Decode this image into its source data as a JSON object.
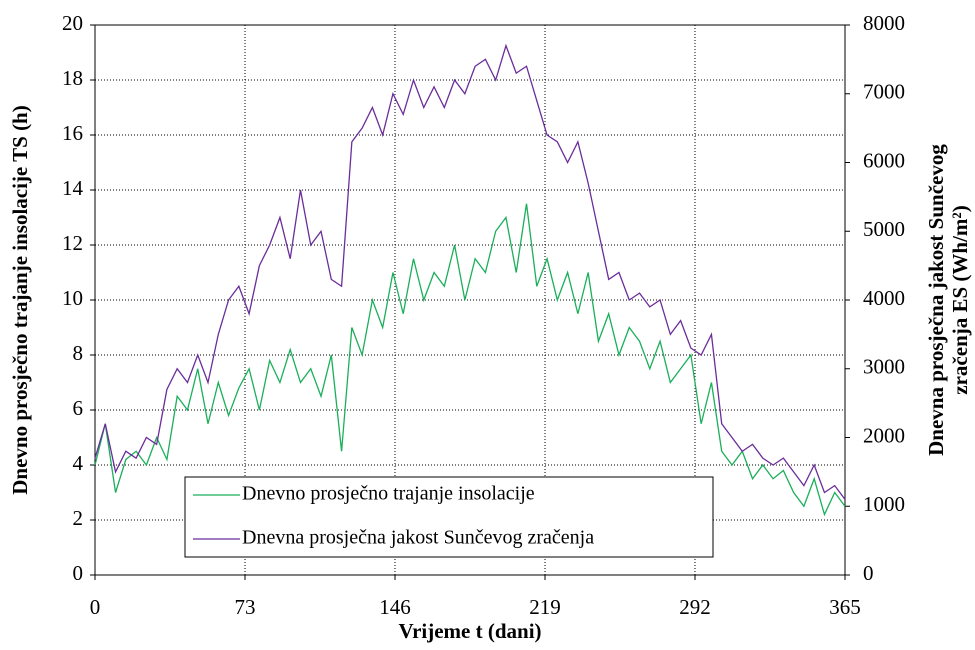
{
  "chart_data": {
    "type": "line",
    "x_label": "Vrijeme t (dani)",
    "y_label": "Dnevno prosječno trajanje insolacije TS (h)",
    "y2_label": [
      "Dnevna prosječna jakost Sunčevog",
      "zračenja ES (Wh/m²)"
    ],
    "x": [
      0,
      5,
      10,
      15,
      20,
      25,
      30,
      35,
      40,
      45,
      50,
      55,
      60,
      65,
      70,
      75,
      80,
      85,
      90,
      95,
      100,
      105,
      110,
      115,
      120,
      125,
      130,
      135,
      140,
      145,
      150,
      155,
      160,
      165,
      170,
      175,
      180,
      185,
      190,
      195,
      200,
      205,
      210,
      215,
      220,
      225,
      230,
      235,
      240,
      245,
      250,
      255,
      260,
      265,
      270,
      275,
      280,
      285,
      290,
      295,
      300,
      305,
      310,
      315,
      320,
      325,
      330,
      335,
      340,
      345,
      350,
      355,
      360,
      365
    ],
    "series": [
      {
        "name": "Dnevno prosječno trajanje insolacije",
        "color": "#1aaf5a",
        "values": [
          4.0,
          5.5,
          3.0,
          4.2,
          4.5,
          4.0,
          5.0,
          4.2,
          6.5,
          6.0,
          7.5,
          5.5,
          7.0,
          5.8,
          6.8,
          7.5,
          6.0,
          7.8,
          7.0,
          8.2,
          7.0,
          7.5,
          6.5,
          8.0,
          4.5,
          9.0,
          8.0,
          10.0,
          9.0,
          11.0,
          9.5,
          11.5,
          10.0,
          11.0,
          10.5,
          12.0,
          10.0,
          11.5,
          11.0,
          12.5,
          13.0,
          11.0,
          13.5,
          10.5,
          11.5,
          10.0,
          11.0,
          9.5,
          11.0,
          8.5,
          9.5,
          8.0,
          9.0,
          8.5,
          7.5,
          8.5,
          7.0,
          7.5,
          8.0,
          5.5,
          7.0,
          4.5,
          4.0,
          4.5,
          3.5,
          4.0,
          3.5,
          3.8,
          3.0,
          2.5,
          3.5,
          2.2,
          3.0,
          2.5
        ]
      },
      {
        "name": "Dnevna prosječna jakost Sunčevog zračenja",
        "color": "#6a2d9a",
        "axis": "y2",
        "values": [
          1700,
          2200,
          1500,
          1800,
          1700,
          2000,
          1900,
          2700,
          3000,
          2800,
          3200,
          2800,
          3500,
          4000,
          4200,
          3800,
          4500,
          4800,
          5200,
          4600,
          5600,
          4800,
          5000,
          4300,
          4200,
          6300,
          6500,
          6800,
          6400,
          7000,
          6700,
          7200,
          6800,
          7100,
          6800,
          7200,
          7000,
          7400,
          7500,
          7200,
          7700,
          7300,
          7400,
          6900,
          6400,
          6300,
          6000,
          6300,
          5700,
          5000,
          4300,
          4400,
          4000,
          4100,
          3900,
          4000,
          3500,
          3700,
          3300,
          3200,
          3500,
          2200,
          2000,
          1800,
          1900,
          1700,
          1600,
          1700,
          1500,
          1300,
          1600,
          1200,
          1300,
          1100
        ]
      }
    ],
    "xlim": [
      0,
      365
    ],
    "xticks": [
      0,
      73,
      146,
      219,
      292,
      365
    ],
    "ylim": [
      0,
      20
    ],
    "yticks": [
      0,
      2,
      4,
      6,
      8,
      10,
      12,
      14,
      16,
      18,
      20
    ],
    "y2lim": [
      0,
      8000
    ],
    "y2ticks": [
      0,
      1000,
      2000,
      3000,
      4000,
      5000,
      6000,
      7000,
      8000
    ],
    "grid": true
  }
}
